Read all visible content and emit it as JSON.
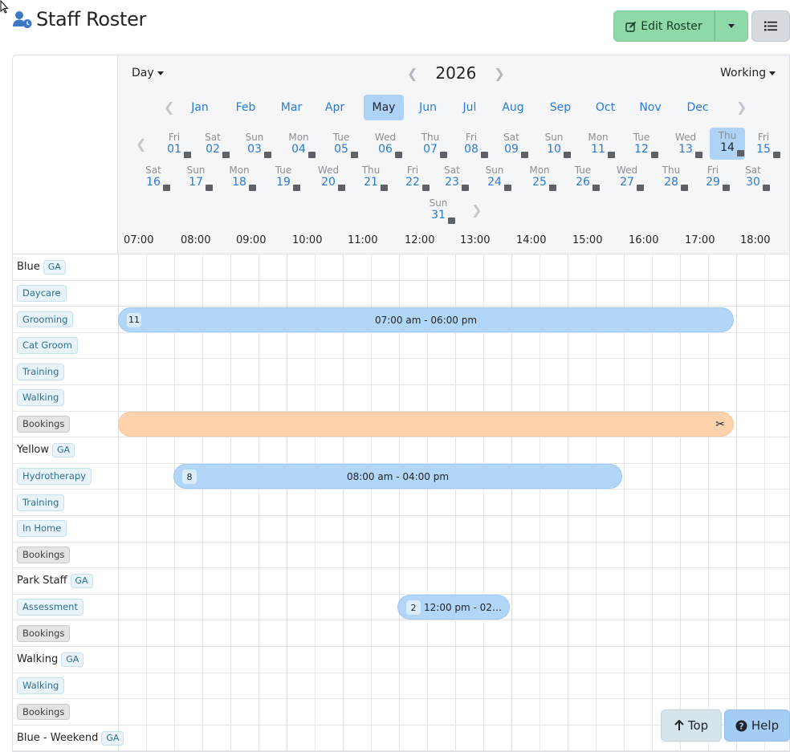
{
  "header": {
    "title": "Staff Roster",
    "edit_label": "Edit Roster"
  },
  "toolbar": {
    "view_label": "Day",
    "year": "2026",
    "filter_label": "Working"
  },
  "months": [
    {
      "label": "Jan",
      "active": false
    },
    {
      "label": "Feb",
      "active": false
    },
    {
      "label": "Mar",
      "active": false
    },
    {
      "label": "Apr",
      "active": false
    },
    {
      "label": "May",
      "active": true
    },
    {
      "label": "Jun",
      "active": false
    },
    {
      "label": "Jul",
      "active": false
    },
    {
      "label": "Aug",
      "active": false
    },
    {
      "label": "Sep",
      "active": false
    },
    {
      "label": "Oct",
      "active": false
    },
    {
      "label": "Nov",
      "active": false
    },
    {
      "label": "Dec",
      "active": false
    }
  ],
  "days": [
    {
      "name": "Fri",
      "num": "01"
    },
    {
      "name": "Sat",
      "num": "02"
    },
    {
      "name": "Sun",
      "num": "03"
    },
    {
      "name": "Mon",
      "num": "04"
    },
    {
      "name": "Tue",
      "num": "05"
    },
    {
      "name": "Wed",
      "num": "06"
    },
    {
      "name": "Thu",
      "num": "07"
    },
    {
      "name": "Fri",
      "num": "08"
    },
    {
      "name": "Sat",
      "num": "09"
    },
    {
      "name": "Sun",
      "num": "10"
    },
    {
      "name": "Mon",
      "num": "11"
    },
    {
      "name": "Tue",
      "num": "12"
    },
    {
      "name": "Wed",
      "num": "13"
    },
    {
      "name": "Thu",
      "num": "14",
      "active": true
    },
    {
      "name": "Fri",
      "num": "15"
    },
    {
      "name": "Sat",
      "num": "16"
    },
    {
      "name": "Sun",
      "num": "17"
    },
    {
      "name": "Mon",
      "num": "18"
    },
    {
      "name": "Tue",
      "num": "19"
    },
    {
      "name": "Wed",
      "num": "20"
    },
    {
      "name": "Thu",
      "num": "21"
    },
    {
      "name": "Fri",
      "num": "22"
    },
    {
      "name": "Sat",
      "num": "23"
    },
    {
      "name": "Sun",
      "num": "24"
    },
    {
      "name": "Mon",
      "num": "25"
    },
    {
      "name": "Tue",
      "num": "26"
    },
    {
      "name": "Wed",
      "num": "27"
    },
    {
      "name": "Thu",
      "num": "28"
    },
    {
      "name": "Fri",
      "num": "29"
    },
    {
      "name": "Sat",
      "num": "30"
    },
    {
      "name": "Sun",
      "num": "31"
    }
  ],
  "hours": [
    "07:00",
    "08:00",
    "09:00",
    "10:00",
    "11:00",
    "12:00",
    "13:00",
    "14:00",
    "15:00",
    "16:00",
    "17:00",
    "18:00"
  ],
  "rows": [
    {
      "label": "Blue",
      "type": "staff",
      "ga": "GA"
    },
    {
      "label": "Daycare",
      "type": "service"
    },
    {
      "label": "Grooming",
      "type": "service"
    },
    {
      "label": "Cat Groom",
      "type": "service"
    },
    {
      "label": "Training",
      "type": "service"
    },
    {
      "label": "Walking",
      "type": "service"
    },
    {
      "label": "Bookings",
      "type": "bookings"
    },
    {
      "label": "Yellow",
      "type": "staff",
      "ga": "GA"
    },
    {
      "label": "Hydrotherapy",
      "type": "service"
    },
    {
      "label": "Training",
      "type": "service"
    },
    {
      "label": "In Home",
      "type": "service"
    },
    {
      "label": "Bookings",
      "type": "bookings"
    },
    {
      "label": "Park Staff",
      "type": "staff",
      "ga": "GA"
    },
    {
      "label": "Assessment",
      "type": "service"
    },
    {
      "label": "Bookings",
      "type": "bookings"
    },
    {
      "label": "Walking",
      "type": "staff",
      "ga": "GA"
    },
    {
      "label": "Walking",
      "type": "service"
    },
    {
      "label": "Bookings",
      "type": "bookings"
    },
    {
      "label": "Blue - Weekend",
      "type": "staff",
      "ga": "GA"
    }
  ],
  "shifts": [
    {
      "count": "11",
      "text": "07:00 am - 06:00 pm",
      "color": "blue"
    },
    {
      "count": "",
      "text": "",
      "color": "orange",
      "icon": "scissors-icon"
    },
    {
      "count": "8",
      "text": "08:00 am - 04:00 pm",
      "color": "blue"
    },
    {
      "count": "2",
      "text": "12:00 pm - 02:0...",
      "color": "blue"
    }
  ],
  "footer": {
    "top_label": "Top",
    "help_label": "Help"
  },
  "colors": {
    "edit_button": "#8fd9a8",
    "shift_blue": "#b1d6f7",
    "shift_orange": "#ffd2ae",
    "active_date": "#aed3f7",
    "link": "#2a7bd8"
  }
}
